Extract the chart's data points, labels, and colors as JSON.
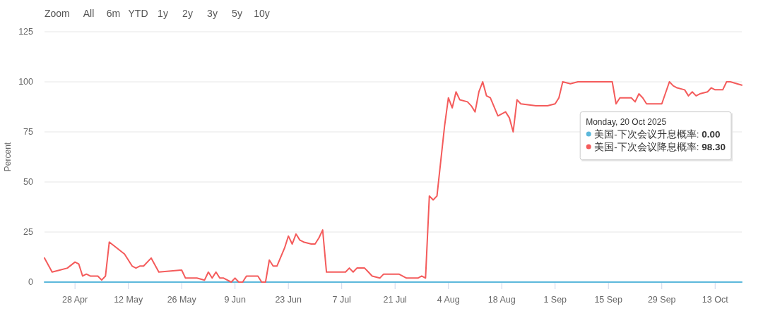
{
  "chart_data": {
    "type": "line",
    "ylabel": "Percent",
    "legend_title": "Monday, 20 Oct 2025",
    "legend": "right",
    "grid": "y",
    "annotations": [
      "Zoom",
      "All",
      "6m",
      "YTD",
      "1y",
      "2y",
      "3y",
      "5y",
      "10y"
    ],
    "xlim": [
      "2025-04-20",
      "2025-10-20"
    ],
    "xticks": [
      {
        "value": "2025-04-28",
        "label": "28 Apr"
      },
      {
        "value": "2025-05-12",
        "label": "12 May"
      },
      {
        "value": "2025-05-26",
        "label": "26 May"
      },
      {
        "value": "2025-06-09",
        "label": "9 Jun"
      },
      {
        "value": "2025-06-23",
        "label": "23 Jun"
      },
      {
        "value": "2025-07-07",
        "label": "7 Jul"
      },
      {
        "value": "2025-07-21",
        "label": "21 Jul"
      },
      {
        "value": "2025-08-04",
        "label": "4 Aug"
      },
      {
        "value": "2025-08-18",
        "label": "18 Aug"
      },
      {
        "value": "2025-09-01",
        "label": "1 Sep"
      },
      {
        "value": "2025-09-15",
        "label": "15 Sep"
      },
      {
        "value": "2025-09-29",
        "label": "29 Sep"
      },
      {
        "value": "2025-10-13",
        "label": "13 Oct"
      }
    ],
    "ylim": [
      0,
      125
    ],
    "yticks": [
      0,
      25,
      50,
      75,
      100,
      125
    ],
    "series": [
      {
        "name": "美国-下次会议升息概率: 0.00",
        "color": "#5cb8db",
        "x": [
          "2025-04-20",
          "2025-10-20"
        ],
        "values": [
          0,
          0
        ]
      },
      {
        "name": "美国-下次会议降息概率: 98.30",
        "color": "#f45b5b",
        "x": [
          "2025-04-20",
          "2025-04-22",
          "2025-04-24",
          "2025-04-26",
          "2025-04-28",
          "2025-04-29",
          "2025-04-30",
          "2025-05-01",
          "2025-05-02",
          "2025-05-04",
          "2025-05-05",
          "2025-05-06",
          "2025-05-07",
          "2025-05-09",
          "2025-05-11",
          "2025-05-13",
          "2025-05-14",
          "2025-05-15",
          "2025-05-16",
          "2025-05-18",
          "2025-05-20",
          "2025-05-26",
          "2025-05-27",
          "2025-05-30",
          "2025-06-01",
          "2025-06-02",
          "2025-06-03",
          "2025-06-04",
          "2025-06-05",
          "2025-06-06",
          "2025-06-08",
          "2025-06-09",
          "2025-06-10",
          "2025-06-11",
          "2025-06-12",
          "2025-06-15",
          "2025-06-16",
          "2025-06-17",
          "2025-06-18",
          "2025-06-19",
          "2025-06-20",
          "2025-06-22",
          "2025-06-23",
          "2025-06-24",
          "2025-06-25",
          "2025-06-26",
          "2025-06-27",
          "2025-06-29",
          "2025-06-30",
          "2025-07-01",
          "2025-07-02",
          "2025-07-03",
          "2025-07-04",
          "2025-07-06",
          "2025-07-07",
          "2025-07-08",
          "2025-07-09",
          "2025-07-10",
          "2025-07-11",
          "2025-07-13",
          "2025-07-14",
          "2025-07-15",
          "2025-07-17",
          "2025-07-18",
          "2025-07-20",
          "2025-07-22",
          "2025-07-24",
          "2025-07-27",
          "2025-07-28",
          "2025-07-29",
          "2025-07-30",
          "2025-07-31",
          "2025-08-01",
          "2025-08-03",
          "2025-08-04",
          "2025-08-05",
          "2025-08-06",
          "2025-08-07",
          "2025-08-09",
          "2025-08-10",
          "2025-08-11",
          "2025-08-12",
          "2025-08-13",
          "2025-08-14",
          "2025-08-15",
          "2025-08-17",
          "2025-08-19",
          "2025-08-20",
          "2025-08-21",
          "2025-08-22",
          "2025-08-23",
          "2025-08-27",
          "2025-08-30",
          "2025-09-01",
          "2025-09-02",
          "2025-09-03",
          "2025-09-05",
          "2025-09-07",
          "2025-09-16",
          "2025-09-17",
          "2025-09-18",
          "2025-09-21",
          "2025-09-22",
          "2025-09-23",
          "2025-09-24",
          "2025-09-25",
          "2025-09-29",
          "2025-10-01",
          "2025-10-02",
          "2025-10-03",
          "2025-10-05",
          "2025-10-06",
          "2025-10-07",
          "2025-10-08",
          "2025-10-09",
          "2025-10-11",
          "2025-10-12",
          "2025-10-13",
          "2025-10-15",
          "2025-10-16",
          "2025-10-17",
          "2025-10-20"
        ],
        "values": [
          12,
          5,
          6,
          7,
          10,
          9,
          3,
          4,
          3,
          3,
          1,
          3,
          20,
          17,
          14,
          8,
          7,
          8,
          8,
          12,
          5,
          6,
          2,
          2,
          1,
          5,
          2,
          5,
          2,
          2,
          0,
          2,
          0,
          0,
          3,
          3,
          0,
          0,
          11,
          8,
          8,
          17,
          23,
          19,
          24,
          21,
          20,
          19,
          19,
          22,
          26,
          5,
          5,
          5,
          5,
          5,
          7,
          5,
          7,
          7,
          5,
          3,
          2,
          4,
          4,
          4,
          2,
          2,
          3,
          2,
          43,
          41,
          43,
          78,
          92,
          87,
          95,
          91,
          90,
          88,
          85,
          95,
          100,
          93,
          92,
          83,
          85,
          82,
          75,
          91,
          89,
          88,
          88,
          89,
          92,
          100,
          99,
          100,
          100,
          89,
          92,
          92,
          90,
          94,
          92,
          89,
          89,
          100,
          98,
          97,
          96,
          93,
          95,
          93,
          94,
          95,
          97,
          96,
          96,
          100,
          100,
          98.3
        ]
      }
    ]
  }
}
